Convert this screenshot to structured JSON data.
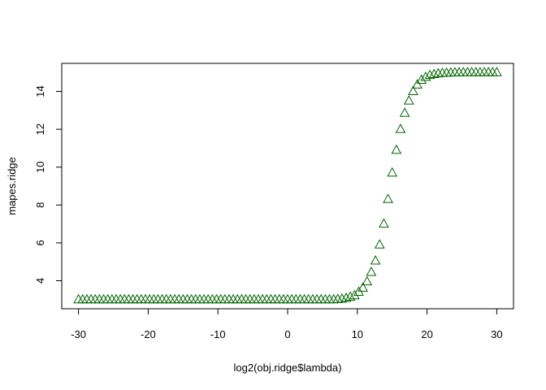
{
  "chart_data": {
    "type": "scatter",
    "title": "",
    "xlabel": "log2(obj.ridge$lambda)",
    "ylabel": "mapes.ridge",
    "x_ticks": [
      -30,
      -20,
      -10,
      0,
      10,
      20,
      30
    ],
    "x_tick_labels": [
      "-30",
      "-20",
      "-10",
      "0",
      "10",
      "20",
      "30"
    ],
    "y_ticks": [
      4,
      6,
      8,
      10,
      12,
      14
    ],
    "y_tick_labels": [
      "4",
      "6",
      "8",
      "10",
      "12",
      "14"
    ],
    "xlim": [
      -32.4,
      32.4
    ],
    "ylim": [
      2.52,
      15.48
    ],
    "marker": "triangle-open",
    "marker_color": "#006400",
    "grid": false,
    "legend": "none",
    "series": [
      {
        "x": [
          -30,
          -29.4,
          -28.8,
          -28.2,
          -27.6,
          -27,
          -26.4,
          -25.8,
          -25.2,
          -24.6,
          -24,
          -23.4,
          -22.8,
          -22.2,
          -21.6,
          -21,
          -20.4,
          -19.8,
          -19.2,
          -18.6,
          -18,
          -17.4,
          -16.8,
          -16.2,
          -15.6,
          -15,
          -14.4,
          -13.8,
          -13.2,
          -12.6,
          -12,
          -11.4,
          -10.8,
          -10.2,
          -9.6,
          -9,
          -8.4,
          -7.8,
          -7.2,
          -6.6,
          -6,
          -5.4,
          -4.8,
          -4.2,
          -3.6,
          -3,
          -2.4,
          -1.8,
          -1.2,
          -0.6,
          0,
          0.6,
          1.2,
          1.8,
          2.4,
          3,
          3.6,
          4.2,
          4.8,
          5.4,
          6,
          6.6,
          7.2,
          7.8,
          8.4,
          9,
          9.6,
          10.2,
          10.8,
          11.4,
          12,
          12.6,
          13.2,
          13.8,
          14.4,
          15,
          15.6,
          16.2,
          16.8,
          17.4,
          18,
          18.6,
          19.2,
          19.8,
          20.4,
          21,
          21.6,
          22.2,
          22.8,
          23.4,
          24,
          24.6,
          25.2,
          25.8,
          26.4,
          27,
          27.6,
          28.2,
          28.8,
          29.4,
          30
        ],
        "y": [
          3,
          3,
          3,
          3,
          3,
          3,
          3,
          3,
          3,
          3,
          3,
          3,
          3,
          3,
          3,
          3,
          3,
          3,
          3,
          3,
          3,
          3,
          3,
          3,
          3,
          3,
          3,
          3,
          3,
          3,
          3,
          3,
          3,
          3,
          3,
          3,
          3,
          3,
          3,
          3,
          3,
          3,
          3,
          3,
          3,
          3,
          3,
          3,
          3,
          3,
          3,
          3,
          3,
          3,
          3,
          3,
          3,
          3,
          3,
          3,
          3,
          3,
          3.02,
          3.04,
          3.08,
          3.14,
          3.22,
          3.4,
          3.62,
          3.95,
          4.45,
          5.05,
          5.9,
          7,
          8.3,
          9.7,
          10.9,
          12,
          12.85,
          13.5,
          14,
          14.35,
          14.6,
          14.75,
          14.85,
          14.9,
          14.94,
          14.96,
          14.97,
          14.98,
          14.99,
          14.99,
          15,
          15,
          15,
          15,
          15,
          15,
          15,
          15,
          15
        ]
      }
    ]
  }
}
